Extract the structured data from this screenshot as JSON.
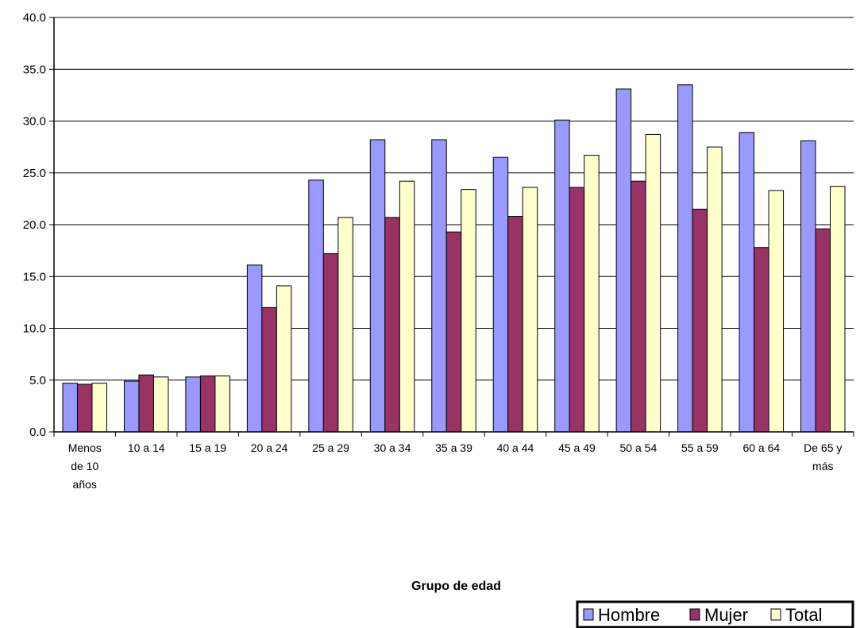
{
  "chart_data": {
    "type": "bar",
    "title": "",
    "xlabel": "Grupo de edad",
    "ylabel": "",
    "ylim": [
      0,
      40
    ],
    "yticks": [
      "0.0",
      "5.0",
      "10.0",
      "15.0",
      "20.0",
      "25.0",
      "30.0",
      "35.0",
      "40.0"
    ],
    "grid": true,
    "legend_position": "bottom-right",
    "categories": [
      [
        "Menos",
        "de 10",
        "años"
      ],
      [
        "10 a 14"
      ],
      [
        "15 a 19"
      ],
      [
        "20 a 24"
      ],
      [
        "25 a 29"
      ],
      [
        "30 a 34"
      ],
      [
        "35 a 39"
      ],
      [
        "40 a 44"
      ],
      [
        "45 a 49"
      ],
      [
        "50 a 54"
      ],
      [
        "55 a 59"
      ],
      [
        "60 a 64"
      ],
      [
        "De 65 y",
        "más"
      ]
    ],
    "series": [
      {
        "name": "Hombre",
        "color": "#9999ff",
        "values": [
          4.7,
          4.9,
          5.3,
          16.1,
          24.3,
          28.2,
          28.2,
          26.5,
          30.1,
          33.1,
          33.5,
          28.9,
          28.1
        ]
      },
      {
        "name": "Mujer",
        "color": "#993366",
        "values": [
          4.6,
          5.5,
          5.4,
          12.0,
          17.2,
          20.7,
          19.3,
          20.8,
          23.6,
          24.2,
          21.5,
          17.8,
          19.6
        ]
      },
      {
        "name": "Total",
        "color": "#ffffcc",
        "values": [
          4.7,
          5.3,
          5.4,
          14.1,
          20.7,
          24.2,
          23.4,
          23.6,
          26.7,
          28.7,
          27.5,
          23.3,
          23.7
        ]
      }
    ]
  }
}
